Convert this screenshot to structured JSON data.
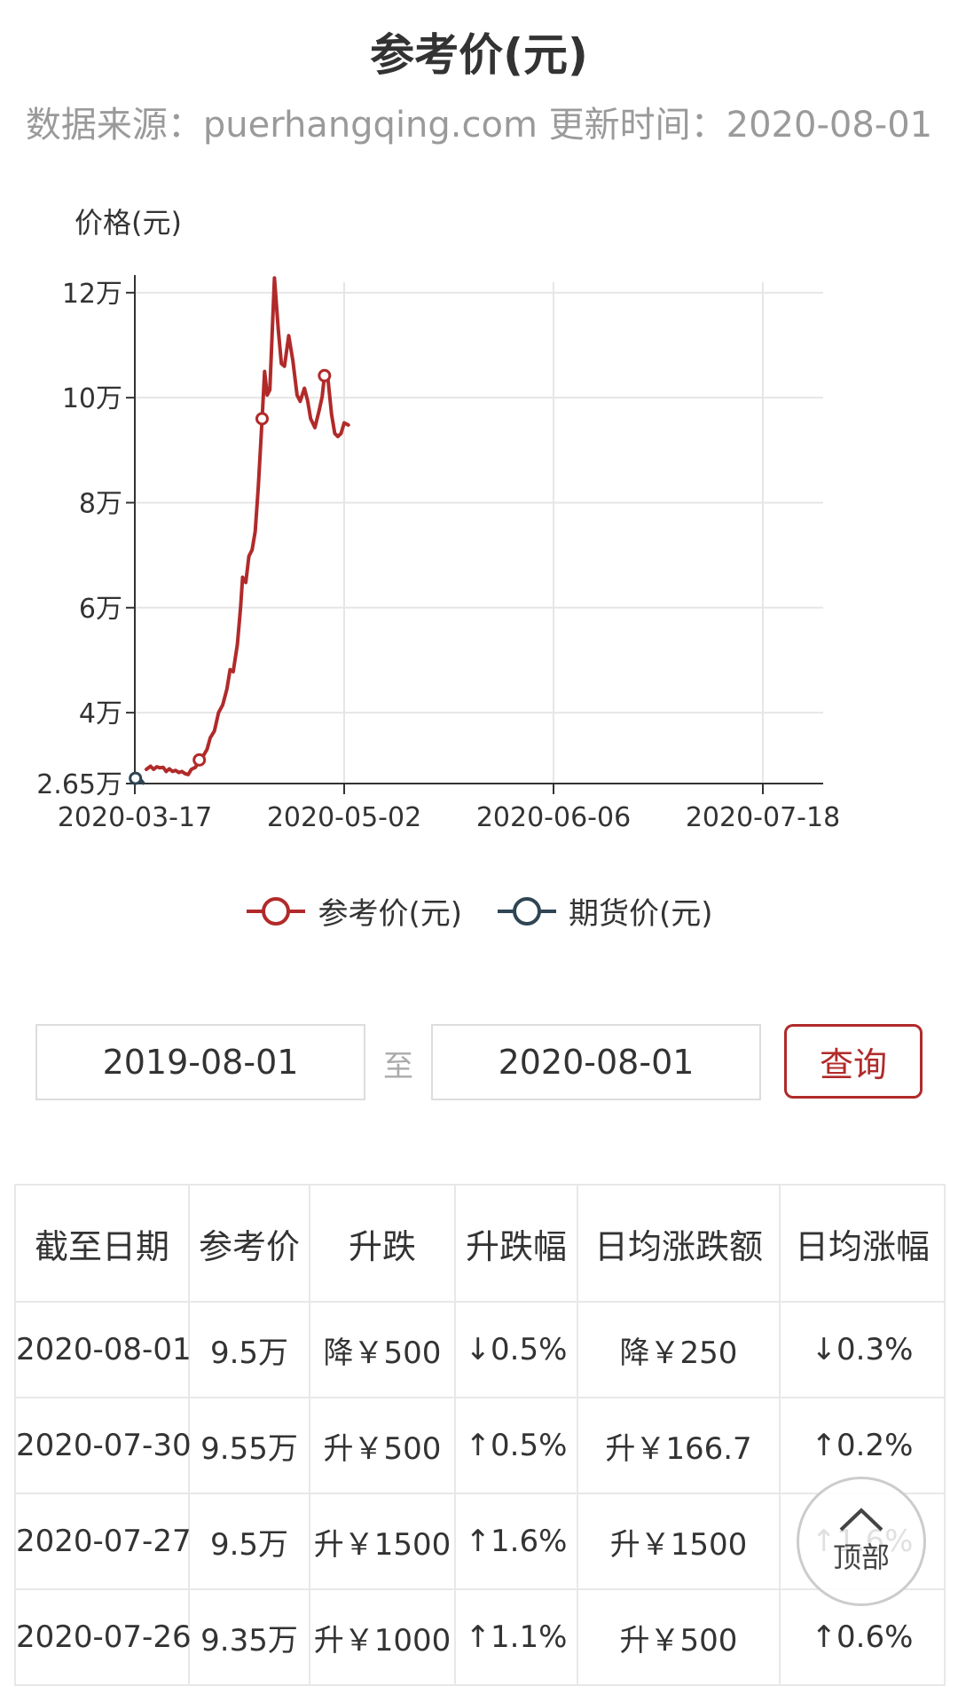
{
  "header": {
    "title": "参考价(元)",
    "subtitle": "数据来源：puerhangqing.com 更新时间：2020-08-01"
  },
  "chart_data": {
    "type": "line",
    "ylabel": "价格(元)",
    "ytick_labels": [
      "2.65万",
      "4万",
      "6万",
      "8万",
      "10万",
      "12万"
    ],
    "ytick_values": [
      26500,
      40000,
      60000,
      80000,
      100000,
      120000
    ],
    "xtick_labels": [
      "2020-03-17",
      "2020-05-02",
      "2020-06-06",
      "2020-07-18"
    ],
    "ylim": [
      26500,
      122000
    ],
    "grid": true,
    "legend_position": "bottom-center",
    "series": [
      {
        "name": "参考价(元)",
        "color": "#b12a2a",
        "markers": [
          [
            0.308,
            31000
          ],
          [
            0.608,
            96000
          ],
          [
            0.906,
            104200
          ]
        ],
        "values": [
          [
            0.055,
            29200
          ],
          [
            0.075,
            29800
          ],
          [
            0.09,
            29200
          ],
          [
            0.105,
            29700
          ],
          [
            0.12,
            29500
          ],
          [
            0.135,
            29600
          ],
          [
            0.15,
            28800
          ],
          [
            0.165,
            29300
          ],
          [
            0.18,
            28800
          ],
          [
            0.195,
            29000
          ],
          [
            0.21,
            28600
          ],
          [
            0.225,
            28800
          ],
          [
            0.24,
            28400
          ],
          [
            0.255,
            28200
          ],
          [
            0.27,
            29200
          ],
          [
            0.29,
            29600
          ],
          [
            0.308,
            31000
          ],
          [
            0.33,
            32000
          ],
          [
            0.345,
            33000
          ],
          [
            0.36,
            35200
          ],
          [
            0.38,
            36500
          ],
          [
            0.4,
            40000
          ],
          [
            0.42,
            41500
          ],
          [
            0.44,
            44500
          ],
          [
            0.455,
            48200
          ],
          [
            0.47,
            47800
          ],
          [
            0.49,
            53000
          ],
          [
            0.505,
            60000
          ],
          [
            0.515,
            65800
          ],
          [
            0.53,
            64800
          ],
          [
            0.545,
            69800
          ],
          [
            0.56,
            71000
          ],
          [
            0.575,
            74500
          ],
          [
            0.59,
            83000
          ],
          [
            0.608,
            96000
          ],
          [
            0.62,
            105000
          ],
          [
            0.632,
            100500
          ],
          [
            0.645,
            101500
          ],
          [
            0.667,
            122800
          ],
          [
            0.685,
            113000
          ],
          [
            0.7,
            106500
          ],
          [
            0.715,
            106000
          ],
          [
            0.735,
            111800
          ],
          [
            0.755,
            107000
          ],
          [
            0.775,
            100500
          ],
          [
            0.79,
            99300
          ],
          [
            0.81,
            101800
          ],
          [
            0.825,
            99500
          ],
          [
            0.84,
            96000
          ],
          [
            0.86,
            94300
          ],
          [
            0.88,
            97500
          ],
          [
            0.895,
            100200
          ],
          [
            0.906,
            104200
          ],
          [
            0.92,
            104600
          ],
          [
            0.94,
            96800
          ],
          [
            0.955,
            93200
          ],
          [
            0.97,
            92600
          ],
          [
            0.985,
            93200
          ],
          [
            1.0,
            95200
          ],
          [
            1.02,
            94800
          ]
        ]
      },
      {
        "name": "期货价(元)",
        "color": "#2f4554",
        "markers": [
          [
            0.003,
            27500
          ]
        ],
        "values": [
          [
            0.003,
            27500
          ],
          [
            0.02,
            27600
          ],
          [
            0.04,
            26600
          ]
        ]
      }
    ]
  },
  "filter": {
    "start_date": "2019-08-01",
    "to_label": "至",
    "end_date": "2020-08-01",
    "query_label": "查询"
  },
  "table": {
    "headers": [
      "截至日期",
      "参考价",
      "升跌",
      "升跌幅",
      "日均涨跌额",
      "日均涨幅"
    ],
    "rows": [
      {
        "date": "2020-08-01",
        "price": "9.5万",
        "change": "降￥500",
        "change_pct": "↓0.5%",
        "daily_change": "降￥250",
        "daily_pct": "↓0.3%",
        "trend": "down"
      },
      {
        "date": "2020-07-30",
        "price": "9.55万",
        "change": "升￥500",
        "change_pct": "↑0.5%",
        "daily_change": "升￥166.7",
        "daily_pct": "↑0.2%",
        "trend": "up"
      },
      {
        "date": "2020-07-27",
        "price": "9.5万",
        "change": "升￥1500",
        "change_pct": "↑1.6%",
        "daily_change": "升￥1500",
        "daily_pct": "↑1.6%",
        "trend": "up"
      },
      {
        "date": "2020-07-26",
        "price": "9.35万",
        "change": "升￥1000",
        "change_pct": "↑1.1%",
        "daily_change": "升￥500",
        "daily_pct": "↑0.6%",
        "trend": "up"
      }
    ]
  },
  "top_button": {
    "label": "顶部",
    "icon": "chevron-up-icon"
  },
  "colors": {
    "up": "#c0171d",
    "down": "#1a8a3a",
    "primary": "#b12a2a"
  }
}
